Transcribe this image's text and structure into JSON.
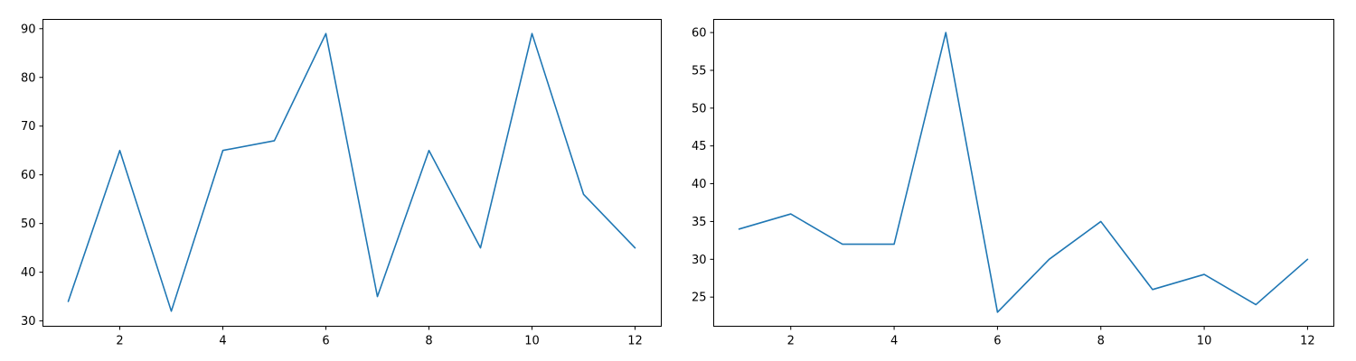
{
  "chart_data": [
    {
      "type": "line",
      "title": "",
      "xlabel": "",
      "ylabel": "",
      "xlim": [
        0.5,
        12.5
      ],
      "ylim": [
        29.0,
        92.0
      ],
      "x_ticks": [
        2,
        4,
        6,
        8,
        10,
        12
      ],
      "y_ticks": [
        30,
        40,
        50,
        60,
        70,
        80,
        90
      ],
      "grid": false,
      "line_color": "#1f77b4",
      "series": [
        {
          "x": [
            1,
            2,
            3,
            4,
            5,
            6,
            7,
            8,
            9,
            10,
            11,
            12
          ],
          "values": [
            34,
            65,
            32,
            65,
            67,
            89,
            35,
            65,
            45,
            89,
            56,
            45
          ]
        }
      ]
    },
    {
      "type": "line",
      "title": "",
      "xlabel": "",
      "ylabel": "",
      "xlim": [
        0.5,
        12.5
      ],
      "ylim": [
        21.2,
        61.8
      ],
      "x_ticks": [
        2,
        4,
        6,
        8,
        10,
        12
      ],
      "y_ticks": [
        25,
        30,
        35,
        40,
        45,
        50,
        55,
        60
      ],
      "grid": false,
      "line_color": "#1f77b4",
      "series": [
        {
          "x": [
            1,
            2,
            3,
            4,
            5,
            6,
            7,
            8,
            9,
            10,
            11,
            12
          ],
          "values": [
            34,
            36,
            32,
            32,
            60,
            23,
            30,
            35,
            26,
            28,
            24,
            30
          ]
        }
      ]
    }
  ]
}
